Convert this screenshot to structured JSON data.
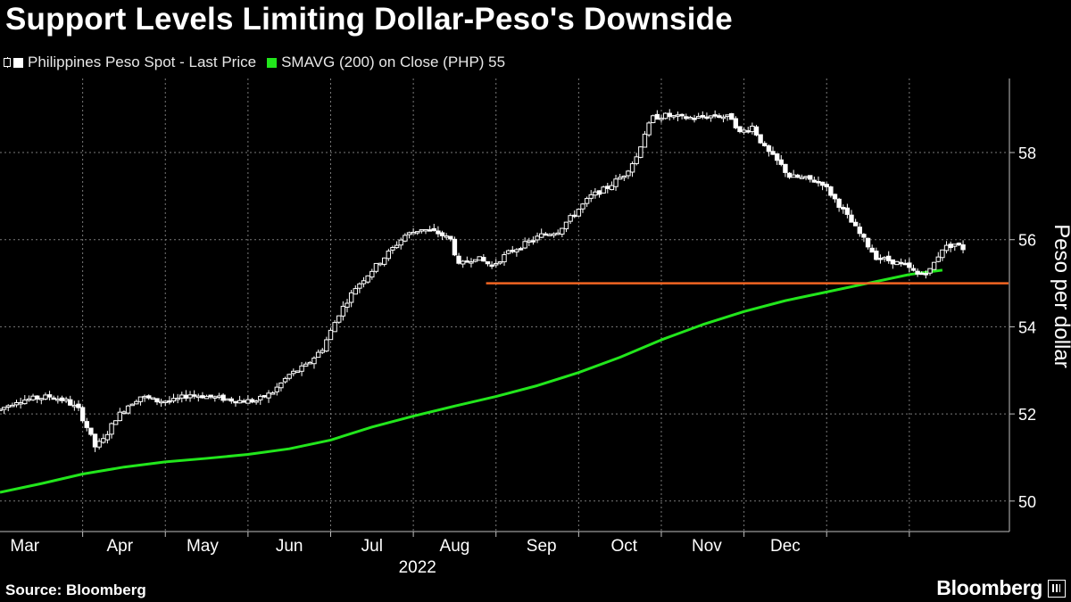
{
  "title": "Support Levels Limiting Dollar-Peso's Downside",
  "legend": {
    "series1": "Philippines Peso Spot - Last Price",
    "series2": "SMAVG (200)  on Close (PHP) 55"
  },
  "source": "Source: Bloomberg",
  "brand": "Bloomberg",
  "colors": {
    "price": "#ffffff",
    "sma": "#22e61c",
    "support": "#f26522",
    "grid": "#7a7a7a"
  },
  "chart_data": {
    "type": "candlestick",
    "title": "Support Levels Limiting Dollar-Peso's Downside",
    "ylabel": "Peso per dollar",
    "ylim": [
      49.3,
      59.7
    ],
    "yticks": [
      50,
      52,
      54,
      56,
      58
    ],
    "xlim": [
      1.0,
      13.2
    ],
    "year_label": "2022",
    "months": [
      {
        "label": "Mar",
        "center": 1.3
      },
      {
        "label": "Apr",
        "center": 2.45
      },
      {
        "label": "May",
        "center": 3.45
      },
      {
        "label": "Jun",
        "center": 4.5
      },
      {
        "label": "Jul",
        "center": 5.5
      },
      {
        "label": "Aug",
        "center": 6.5
      },
      {
        "label": "Sep",
        "center": 7.55
      },
      {
        "label": "Oct",
        "center": 8.55
      },
      {
        "label": "Nov",
        "center": 9.55
      },
      {
        "label": "Dec",
        "center": 10.5
      }
    ],
    "month_boundaries": [
      2.0,
      3.0,
      4.0,
      5.0,
      6.0,
      7.0,
      8.0,
      9.0,
      10.0,
      11.0,
      12.0
    ],
    "price_path": [
      [
        1.0,
        52.1
      ],
      [
        1.2,
        52.3
      ],
      [
        1.4,
        52.35
      ],
      [
        1.6,
        52.4
      ],
      [
        1.8,
        52.3
      ],
      [
        1.95,
        52.1
      ],
      [
        2.05,
        51.7
      ],
      [
        2.15,
        51.25
      ],
      [
        2.25,
        51.4
      ],
      [
        2.4,
        51.9
      ],
      [
        2.55,
        52.2
      ],
      [
        2.7,
        52.4
      ],
      [
        2.9,
        52.3
      ],
      [
        3.1,
        52.3
      ],
      [
        3.3,
        52.45
      ],
      [
        3.5,
        52.4
      ],
      [
        3.7,
        52.35
      ],
      [
        3.9,
        52.3
      ],
      [
        4.1,
        52.3
      ],
      [
        4.3,
        52.5
      ],
      [
        4.5,
        52.9
      ],
      [
        4.7,
        53.1
      ],
      [
        4.9,
        53.5
      ],
      [
        5.1,
        54.3
      ],
      [
        5.3,
        54.9
      ],
      [
        5.5,
        55.3
      ],
      [
        5.7,
        55.7
      ],
      [
        5.9,
        56.1
      ],
      [
        6.1,
        56.25
      ],
      [
        6.3,
        56.15
      ],
      [
        6.45,
        56.0
      ],
      [
        6.55,
        55.4
      ],
      [
        6.75,
        55.6
      ],
      [
        6.95,
        55.4
      ],
      [
        7.15,
        55.7
      ],
      [
        7.35,
        55.9
      ],
      [
        7.55,
        56.1
      ],
      [
        7.75,
        56.2
      ],
      [
        7.95,
        56.6
      ],
      [
        8.15,
        57.0
      ],
      [
        8.35,
        57.2
      ],
      [
        8.55,
        57.5
      ],
      [
        8.7,
        57.9
      ],
      [
        8.8,
        58.45
      ],
      [
        8.9,
        58.8
      ],
      [
        9.05,
        58.85
      ],
      [
        9.25,
        58.8
      ],
      [
        9.45,
        58.8
      ],
      [
        9.65,
        58.85
      ],
      [
        9.85,
        58.8
      ],
      [
        9.95,
        58.45
      ],
      [
        10.1,
        58.6
      ],
      [
        10.25,
        58.1
      ],
      [
        10.45,
        57.7
      ],
      [
        10.55,
        57.45
      ],
      [
        10.75,
        57.4
      ],
      [
        10.95,
        57.3
      ],
      [
        11.15,
        56.8
      ],
      [
        11.3,
        56.4
      ],
      [
        11.45,
        56.0
      ],
      [
        11.6,
        55.6
      ],
      [
        11.8,
        55.5
      ],
      [
        11.95,
        55.4
      ],
      [
        12.1,
        55.2
      ],
      [
        12.25,
        55.3
      ],
      [
        12.4,
        55.8
      ],
      [
        12.55,
        55.9
      ],
      [
        12.65,
        55.8
      ]
    ],
    "sma_path": [
      [
        1.0,
        50.2
      ],
      [
        1.5,
        50.4
      ],
      [
        2.0,
        50.62
      ],
      [
        2.5,
        50.78
      ],
      [
        3.0,
        50.9
      ],
      [
        3.5,
        50.98
      ],
      [
        4.0,
        51.07
      ],
      [
        4.5,
        51.2
      ],
      [
        5.0,
        51.4
      ],
      [
        5.5,
        51.7
      ],
      [
        6.0,
        51.95
      ],
      [
        6.5,
        52.18
      ],
      [
        7.0,
        52.4
      ],
      [
        7.5,
        52.65
      ],
      [
        8.0,
        52.95
      ],
      [
        8.5,
        53.3
      ],
      [
        9.0,
        53.7
      ],
      [
        9.5,
        54.05
      ],
      [
        10.0,
        54.35
      ],
      [
        10.5,
        54.6
      ],
      [
        11.0,
        54.8
      ],
      [
        11.5,
        55.0
      ],
      [
        12.0,
        55.2
      ],
      [
        12.4,
        55.3
      ]
    ],
    "support_line": {
      "value": 55.0,
      "x_start": 6.88,
      "x_end": 13.2
    }
  }
}
